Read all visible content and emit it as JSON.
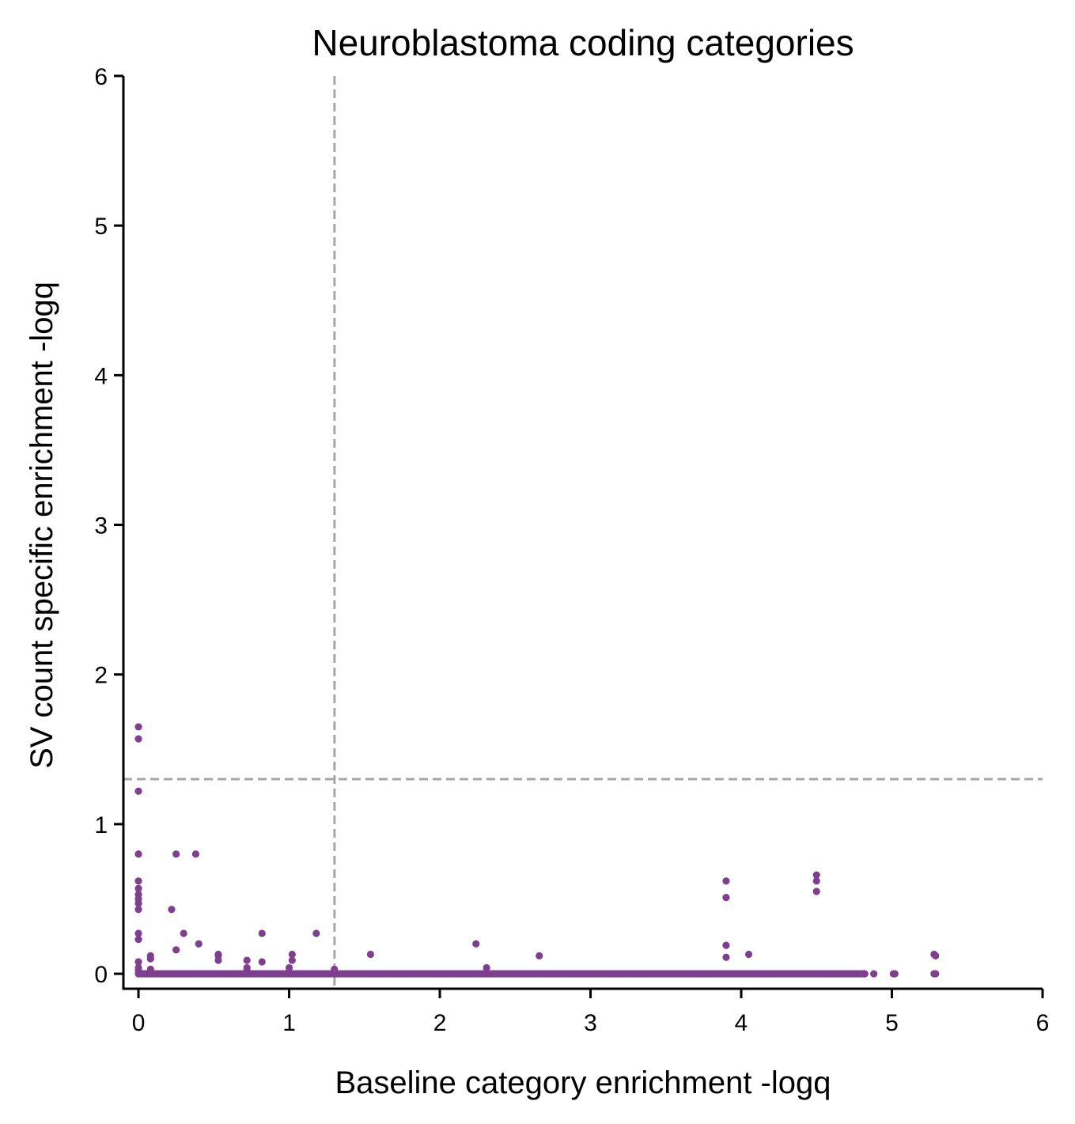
{
  "chart_data": {
    "type": "scatter",
    "title": "Neuroblastoma coding categories",
    "xlabel": "Baseline category enrichment -logq",
    "ylabel": "SV count specific enrichment -logq",
    "xlim": [
      -0.1,
      6
    ],
    "ylim": [
      -0.1,
      6
    ],
    "xticks": [
      0,
      1,
      2,
      3,
      4,
      5,
      6
    ],
    "yticks": [
      0,
      1,
      2,
      3,
      4,
      5,
      6
    ],
    "grid": false,
    "point_color": "#7d3f8e",
    "reference_lines": [
      {
        "orientation": "vertical",
        "value": 1.301,
        "color": "#a6a6a6",
        "style": "dashed"
      },
      {
        "orientation": "horizontal",
        "value": 1.301,
        "color": "#a6a6a6",
        "style": "dashed"
      }
    ],
    "baseline_band": {
      "y": 0,
      "x_start": 0,
      "x_end": 4.82,
      "step": 0.01
    },
    "points": [
      {
        "x": 0.0,
        "y": 1.65
      },
      {
        "x": 0.0,
        "y": 1.57
      },
      {
        "x": 0.0,
        "y": 1.22
      },
      {
        "x": 0.0,
        "y": 0.8
      },
      {
        "x": 0.0,
        "y": 0.62
      },
      {
        "x": 0.0,
        "y": 0.57
      },
      {
        "x": 0.0,
        "y": 0.53
      },
      {
        "x": 0.0,
        "y": 0.5
      },
      {
        "x": 0.0,
        "y": 0.47
      },
      {
        "x": 0.0,
        "y": 0.43
      },
      {
        "x": 0.0,
        "y": 0.27
      },
      {
        "x": 0.0,
        "y": 0.23
      },
      {
        "x": 0.0,
        "y": 0.08
      },
      {
        "x": 0.0,
        "y": 0.04
      },
      {
        "x": 0.0,
        "y": 0.02
      },
      {
        "x": 0.08,
        "y": 0.12
      },
      {
        "x": 0.08,
        "y": 0.1
      },
      {
        "x": 0.08,
        "y": 0.03
      },
      {
        "x": 0.22,
        "y": 0.43
      },
      {
        "x": 0.25,
        "y": 0.8
      },
      {
        "x": 0.25,
        "y": 0.16
      },
      {
        "x": 0.3,
        "y": 0.27
      },
      {
        "x": 0.38,
        "y": 0.8
      },
      {
        "x": 0.4,
        "y": 0.2
      },
      {
        "x": 0.53,
        "y": 0.13
      },
      {
        "x": 0.53,
        "y": 0.12
      },
      {
        "x": 0.53,
        "y": 0.09
      },
      {
        "x": 0.72,
        "y": 0.09
      },
      {
        "x": 0.72,
        "y": 0.04
      },
      {
        "x": 0.72,
        "y": 0.02
      },
      {
        "x": 0.82,
        "y": 0.27
      },
      {
        "x": 0.82,
        "y": 0.08
      },
      {
        "x": 1.02,
        "y": 0.13
      },
      {
        "x": 1.02,
        "y": 0.09
      },
      {
        "x": 1.0,
        "y": 0.04
      },
      {
        "x": 1.18,
        "y": 0.27
      },
      {
        "x": 1.3,
        "y": 0.03
      },
      {
        "x": 1.54,
        "y": 0.13
      },
      {
        "x": 2.24,
        "y": 0.2
      },
      {
        "x": 2.31,
        "y": 0.04
      },
      {
        "x": 2.66,
        "y": 0.12
      },
      {
        "x": 3.9,
        "y": 0.62
      },
      {
        "x": 3.9,
        "y": 0.51
      },
      {
        "x": 3.9,
        "y": 0.19
      },
      {
        "x": 3.9,
        "y": 0.11
      },
      {
        "x": 4.05,
        "y": 0.13
      },
      {
        "x": 4.5,
        "y": 0.66
      },
      {
        "x": 4.5,
        "y": 0.62
      },
      {
        "x": 4.5,
        "y": 0.55
      },
      {
        "x": 4.88,
        "y": 0.0
      },
      {
        "x": 5.01,
        "y": 0.0
      },
      {
        "x": 5.02,
        "y": 0.0
      },
      {
        "x": 5.28,
        "y": 0.13
      },
      {
        "x": 5.29,
        "y": 0.12
      },
      {
        "x": 5.28,
        "y": 0.0
      },
      {
        "x": 5.29,
        "y": 0.0
      }
    ]
  }
}
